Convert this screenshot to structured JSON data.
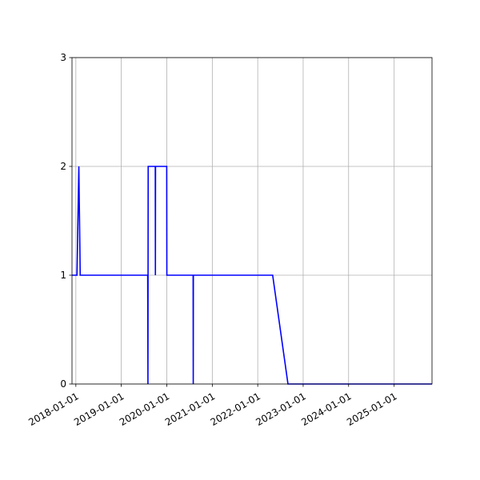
{
  "chart_data": {
    "type": "line",
    "title": "",
    "xlabel": "",
    "ylabel": "",
    "grid": true,
    "x_type": "date",
    "xlim": [
      "2017-12-01",
      "2025-11-01"
    ],
    "ylim": [
      0,
      3
    ],
    "x_ticks": [
      "2018-01-01",
      "2019-01-01",
      "2020-01-01",
      "2021-01-01",
      "2022-01-01",
      "2023-01-01",
      "2024-01-01",
      "2025-01-01"
    ],
    "y_ticks": [
      "0",
      "1",
      "2",
      "3"
    ],
    "series": [
      {
        "name": "",
        "color": "#0000ff",
        "points": [
          [
            "2017-12-01",
            1
          ],
          [
            "2018-01-10",
            1
          ],
          [
            "2018-01-25",
            2
          ],
          [
            "2018-02-05",
            1
          ],
          [
            "2019-08-01",
            1
          ],
          [
            "2019-08-03",
            0
          ],
          [
            "2019-08-05",
            2
          ],
          [
            "2019-10-01",
            2
          ],
          [
            "2019-10-02",
            1
          ],
          [
            "2019-10-03",
            2
          ],
          [
            "2020-01-01",
            2
          ],
          [
            "2020-01-02",
            1
          ],
          [
            "2020-07-31",
            1
          ],
          [
            "2020-08-01",
            0
          ],
          [
            "2020-08-02",
            1
          ],
          [
            "2022-05-01",
            1
          ],
          [
            "2022-09-01",
            0
          ],
          [
            "2025-11-01",
            0
          ]
        ]
      }
    ]
  }
}
